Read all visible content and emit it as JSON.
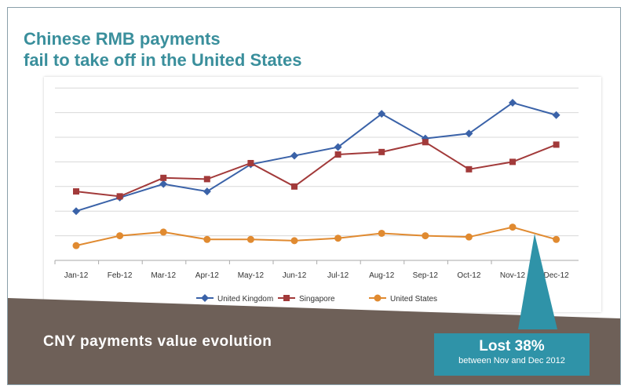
{
  "title_line1": "Chinese RMB payments",
  "title_line2": "fail to take off in the United States",
  "subtitle": "CNY payments value evolution",
  "callout": {
    "headline": "Lost 38%",
    "detail": "between Nov and Dec 2012"
  },
  "colors": {
    "uk": "#3a62a8",
    "sg": "#a23a3a",
    "us": "#e08a30",
    "teal": "#2f93a8",
    "brown": "#6e6058"
  },
  "chart_data": {
    "type": "line",
    "title": "Chinese RMB payments fail to take off in the United States",
    "xlabel": "",
    "ylabel": "",
    "categories": [
      "Jan-12",
      "Feb-12",
      "Mar-12",
      "Apr-12",
      "May-12",
      "Jun-12",
      "Jul-12",
      "Aug-12",
      "Sep-12",
      "Oct-12",
      "Nov-12",
      "Dec-12"
    ],
    "ylim": [
      0,
      7
    ],
    "grid": true,
    "legend": "bottom",
    "series": [
      {
        "name": "United Kingdom",
        "marker": "diamond",
        "values": [
          2.0,
          2.55,
          3.1,
          2.8,
          3.9,
          4.25,
          4.6,
          5.95,
          4.95,
          5.15,
          6.4,
          5.9
        ]
      },
      {
        "name": "Singapore",
        "marker": "square",
        "values": [
          2.8,
          2.6,
          3.35,
          3.3,
          3.95,
          3.0,
          4.3,
          4.4,
          4.8,
          3.7,
          4.0,
          4.7
        ]
      },
      {
        "name": "United States",
        "marker": "circle",
        "values": [
          0.6,
          1.0,
          1.15,
          0.85,
          0.85,
          0.8,
          0.9,
          1.1,
          1.0,
          0.95,
          1.35,
          0.85
        ]
      }
    ]
  }
}
